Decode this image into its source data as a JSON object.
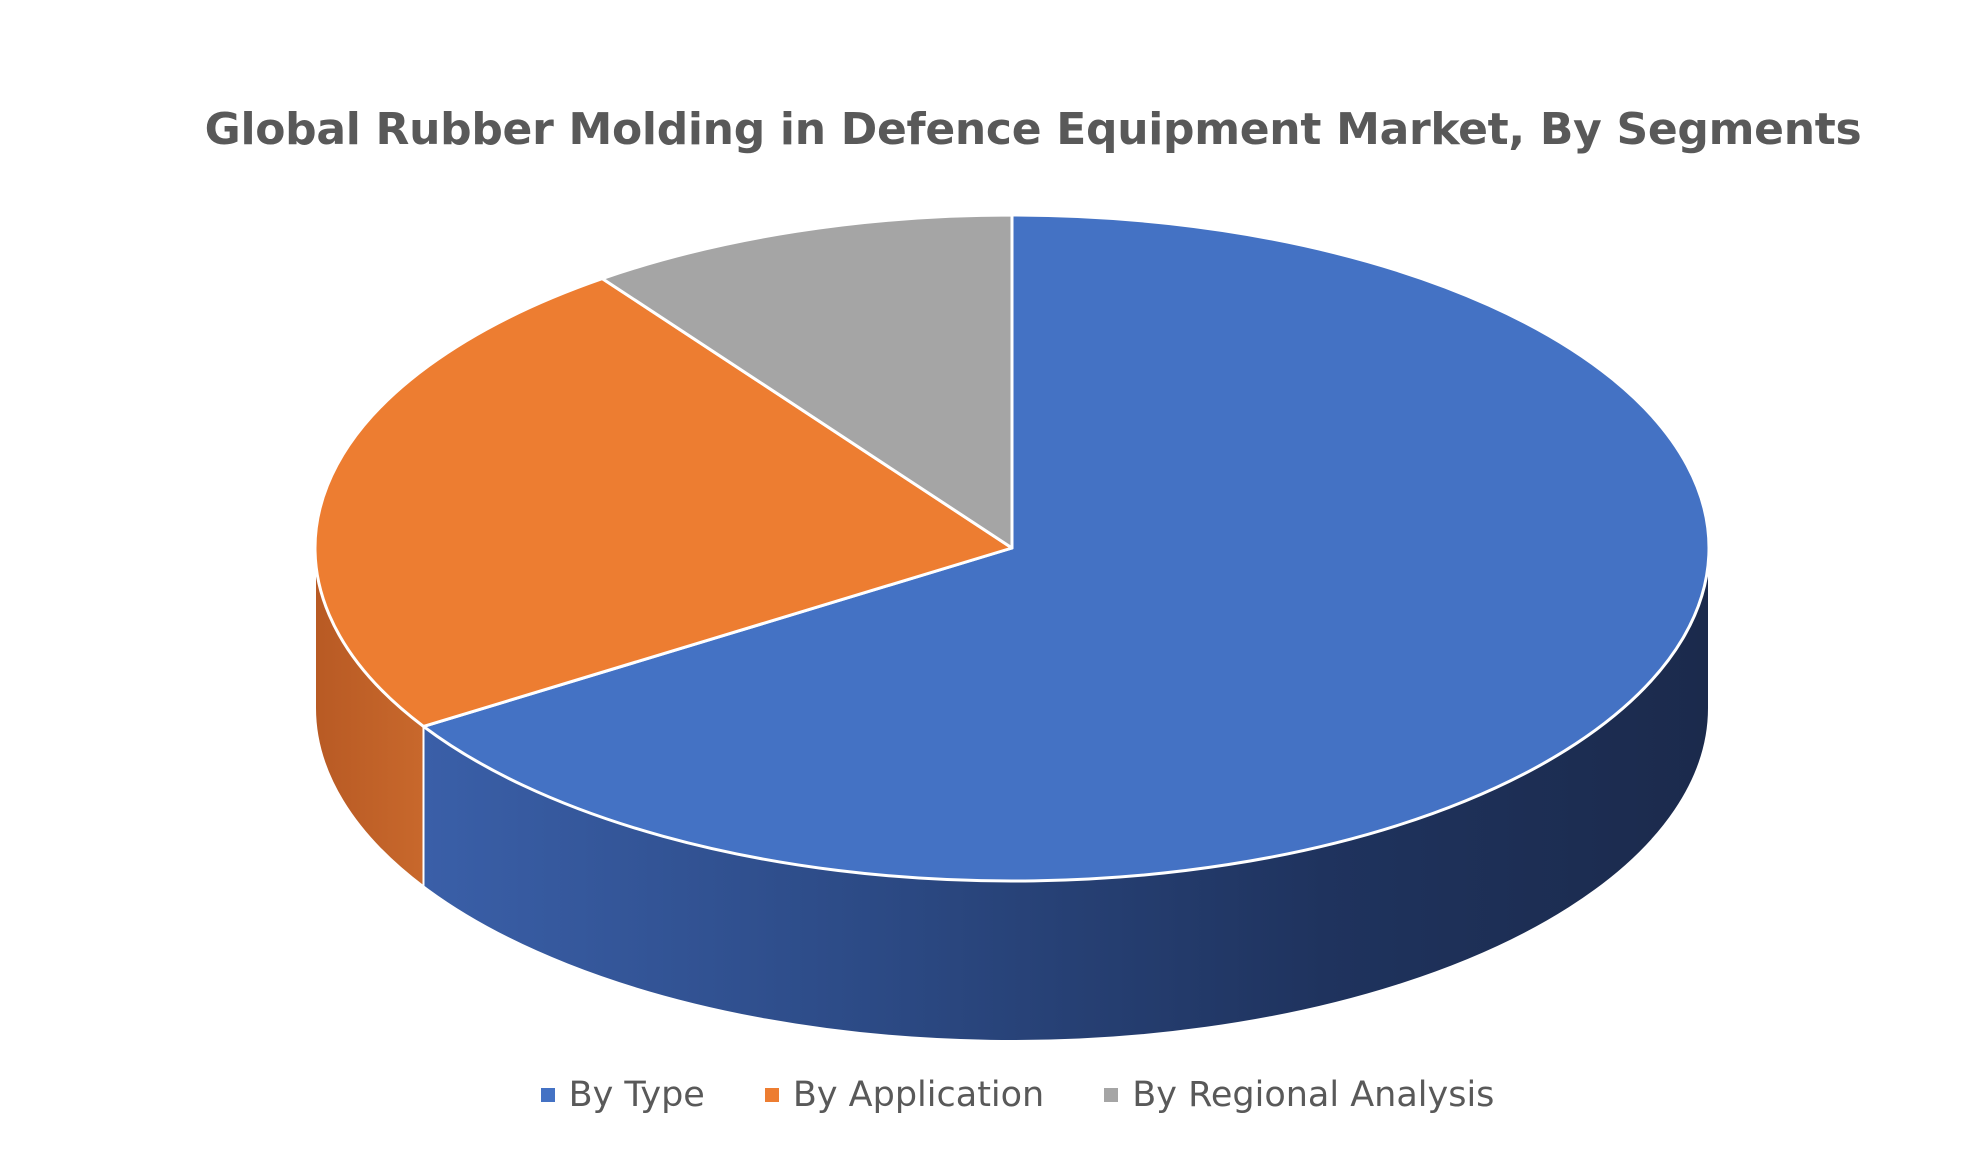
{
  "chart_data": {
    "type": "pie",
    "title": "Global Rubber Molding in Defence Equipment Market, By Segments",
    "three_d": true,
    "start_angle_deg": 0,
    "direction": "clockwise",
    "categories": [
      "By Type",
      "By Application",
      "By Regional Analysis"
    ],
    "values": [
      66,
      24,
      10
    ],
    "colors": [
      "#4472C4",
      "#ED7D31",
      "#A5A5A5"
    ],
    "side_colors": [
      "#2F5597",
      "#C5612A",
      "#7F7F7F"
    ],
    "legend_position": "bottom"
  }
}
